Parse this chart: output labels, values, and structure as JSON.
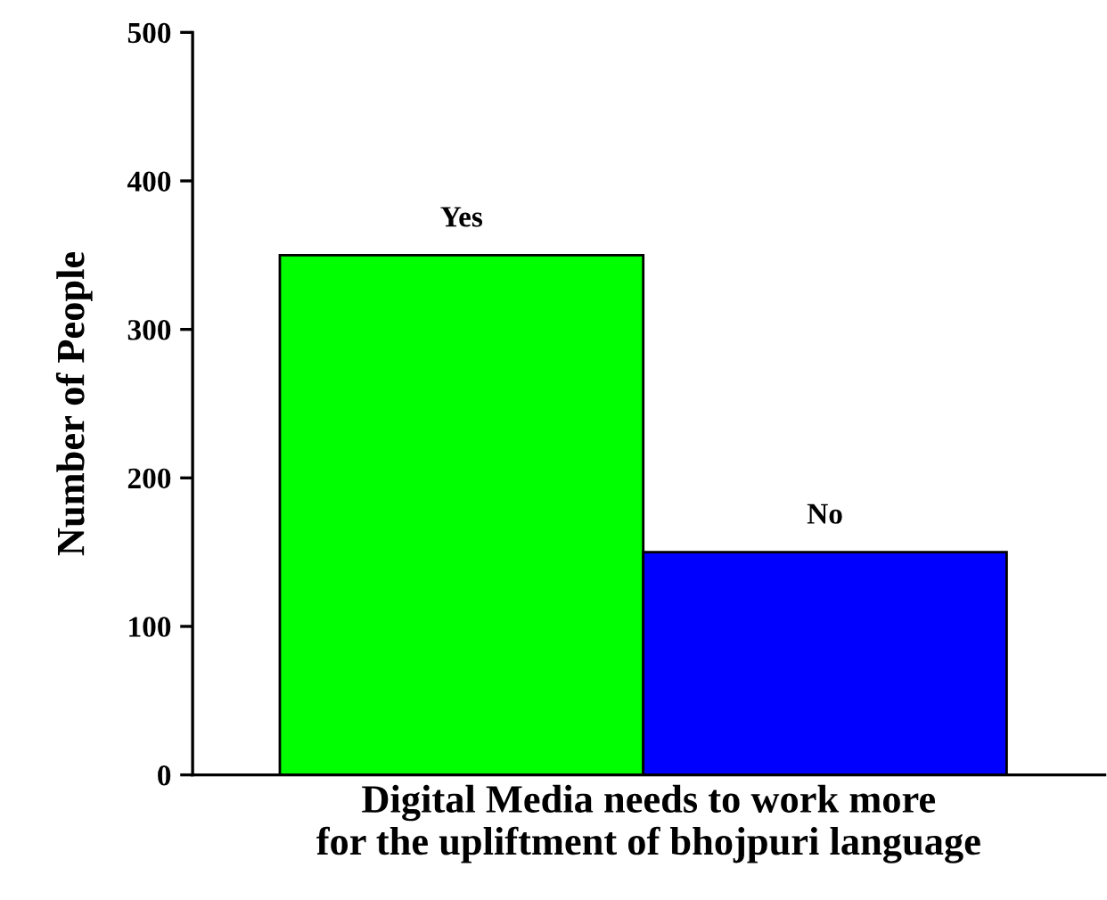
{
  "chart_data": {
    "type": "bar",
    "xlabel": "Digital Media needs to work more\nfor the upliftment of bhojpuri language",
    "ylabel": "Number of People",
    "categories": [
      "Yes",
      "No"
    ],
    "values": [
      350,
      150
    ],
    "colors": [
      "#00ff00",
      "#0000ff"
    ],
    "ylim": [
      0,
      500
    ],
    "yticks": [
      0,
      100,
      200,
      300,
      400,
      500
    ],
    "grid": false,
    "legend": false
  }
}
